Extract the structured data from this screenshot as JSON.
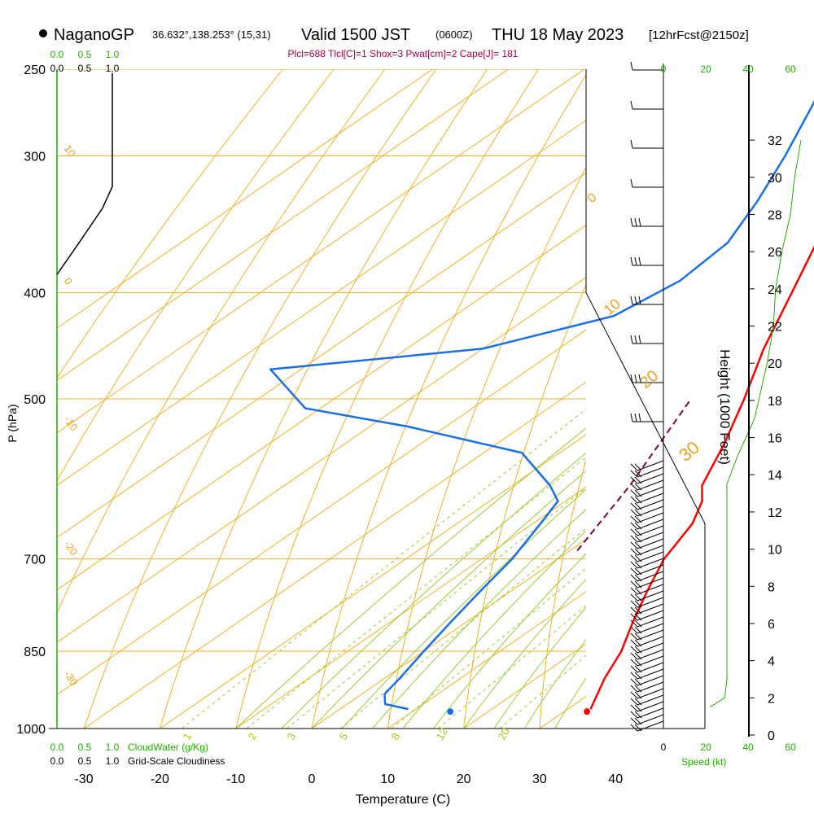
{
  "chart_data": {
    "type": "skew-t",
    "station": "NaganoGP",
    "location": "36.632°,138.253° (15,31)",
    "valid_main": "Valid 1500 JST",
    "valid_zulu": "(0600Z)",
    "valid_date": "THU 18 May 2023",
    "forecast": "[12hrFcst@2150z]",
    "indices": "Plcl=688 Tlcl[C]=1 Shox=3 Pwat[cm]=2 Cape[J]= 181",
    "xlabel": "Temperature (C)",
    "ylabel": "P (hPa)",
    "y2label": "Height (1000 Feet)",
    "temperature_ticks": [
      "-30",
      "-20",
      "-10",
      "0",
      "10",
      "20",
      "30",
      "40"
    ],
    "pressure_ticks": [
      "250",
      "300",
      "400",
      "500",
      "700",
      "850",
      "1000"
    ],
    "height_ticks": [
      "0",
      "2",
      "4",
      "6",
      "8",
      "10",
      "12",
      "14",
      "16",
      "18",
      "20",
      "22",
      "24",
      "26",
      "28",
      "30",
      "32"
    ],
    "speed_ticks": [
      "0",
      "20",
      "40",
      "60"
    ],
    "speed_label": "Speed (kt)",
    "cloud_ticks": [
      "0.0",
      "0.5",
      "1.0"
    ],
    "cloud_water_label": "CloudWater (g/Kg)",
    "cloudiness_label": "Grid-Scale Cloudiness",
    "isotherm_labels": [
      "10",
      "0",
      "-10",
      "-20",
      "-30"
    ],
    "dry_adiabat_labels": [
      "0",
      "10",
      "20",
      "30"
    ],
    "mixing_ratio_labels": [
      "1",
      "2",
      "3",
      "5",
      "8",
      "12",
      "20"
    ],
    "temperature_profile": [
      {
        "p": 960,
        "t": 33
      },
      {
        "p": 900,
        "t": 29
      },
      {
        "p": 850,
        "t": 26
      },
      {
        "p": 800,
        "t": 22
      },
      {
        "p": 750,
        "t": 18
      },
      {
        "p": 700,
        "t": 14
      },
      {
        "p": 650,
        "t": 11
      },
      {
        "p": 620,
        "t": 8
      },
      {
        "p": 600,
        "t": 5
      },
      {
        "p": 550,
        "t": 0
      },
      {
        "p": 500,
        "t": -6
      },
      {
        "p": 450,
        "t": -13
      },
      {
        "p": 400,
        "t": -20
      },
      {
        "p": 350,
        "t": -28
      },
      {
        "p": 320,
        "t": -33
      },
      {
        "p": 300,
        "t": -37
      },
      {
        "p": 270,
        "t": -43
      },
      {
        "p": 252,
        "t": -47
      }
    ],
    "dewpoint_profile": [
      {
        "p": 960,
        "t": 9
      },
      {
        "p": 950,
        "t": 5
      },
      {
        "p": 930,
        "t": 3
      },
      {
        "p": 900,
        "t": 2
      },
      {
        "p": 850,
        "t": 0
      },
      {
        "p": 800,
        "t": -2
      },
      {
        "p": 750,
        "t": -4
      },
      {
        "p": 700,
        "t": -6
      },
      {
        "p": 650,
        "t": -9
      },
      {
        "p": 620,
        "t": -11
      },
      {
        "p": 600,
        "t": -15
      },
      {
        "p": 560,
        "t": -25
      },
      {
        "p": 530,
        "t": -45
      },
      {
        "p": 510,
        "t": -62
      },
      {
        "p": 470,
        "t": -74
      },
      {
        "p": 450,
        "t": -50
      },
      {
        "p": 420,
        "t": -39
      },
      {
        "p": 390,
        "t": -37
      },
      {
        "p": 360,
        "t": -38
      },
      {
        "p": 330,
        "t": -42
      },
      {
        "p": 300,
        "t": -47
      },
      {
        "p": 270,
        "t": -53
      },
      {
        "p": 252,
        "t": -57
      }
    ],
    "parcel_path": [
      {
        "p": 688,
        "t": 1
      },
      {
        "p": 600,
        "t": -4.5
      },
      {
        "p": 500,
        "t": -13
      }
    ],
    "surface_temperature": {
      "p": 965,
      "t": 33
    },
    "surface_dewpoint": {
      "p": 965,
      "t": 15
    },
    "cloud_water_profile": [
      {
        "p": 250,
        "v": 0
      },
      {
        "p": 1000,
        "v": 0
      }
    ],
    "cloudiness_profile": [
      {
        "p": 252,
        "v": 1.0
      },
      {
        "p": 320,
        "v": 1.0
      },
      {
        "p": 335,
        "v": 0.82
      },
      {
        "p": 360,
        "v": 0.4
      },
      {
        "p": 385,
        "v": 0.0
      }
    ],
    "wind_speed_profile": [
      {
        "h": 1.5,
        "v": 22
      },
      {
        "h": 2.0,
        "v": 29
      },
      {
        "h": 3.0,
        "v": 30
      },
      {
        "h": 10,
        "v": 30
      },
      {
        "h": 12,
        "v": 30
      },
      {
        "h": 13.5,
        "v": 30
      },
      {
        "h": 15,
        "v": 35
      },
      {
        "h": 17,
        "v": 43
      },
      {
        "h": 20,
        "v": 49
      },
      {
        "h": 22,
        "v": 52
      },
      {
        "h": 24,
        "v": 53
      },
      {
        "h": 26,
        "v": 56
      },
      {
        "h": 28,
        "v": 60
      },
      {
        "h": 30,
        "v": 62
      },
      {
        "h": 32,
        "v": 65
      }
    ],
    "grid": true
  },
  "colors": {
    "temperature": "#ff0000",
    "dewpoint": "#1a6ee6",
    "parcel": "#800040",
    "isobar": "#f0b020",
    "isotherm": "#f0b020",
    "dry_adiabat": "#f0b020",
    "moist_adiabat": "#99cc33",
    "mixing_ratio": "#99cc33",
    "cloud": "#22aa00",
    "text": "#000000"
  }
}
